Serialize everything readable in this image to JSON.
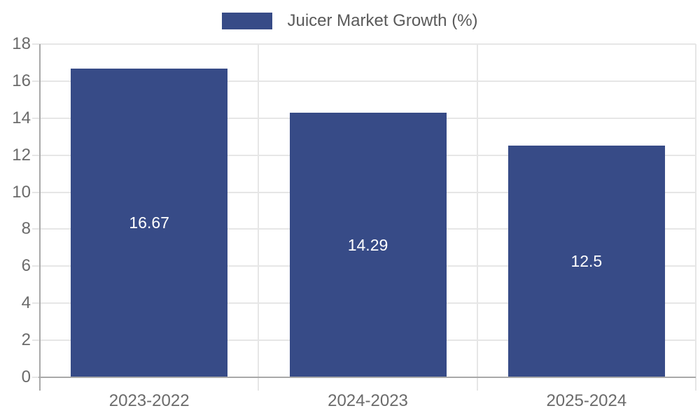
{
  "chart_data": {
    "type": "bar",
    "title": "Juicer Market Growth (%)",
    "legend": {
      "label": "Juicer Market Growth (%)",
      "position": "top-center"
    },
    "categories": [
      "2023-2022",
      "2024-2023",
      "2025-2024"
    ],
    "values": [
      16.67,
      14.29,
      12.5
    ],
    "value_labels": [
      "16.67",
      "14.29",
      "12.5"
    ],
    "xlabel": "",
    "ylabel": "",
    "ylim": [
      0,
      18
    ],
    "ytick_step": 2,
    "ytick_labels": [
      "0",
      "2",
      "4",
      "6",
      "8",
      "10",
      "12",
      "14",
      "16",
      "18"
    ],
    "grid": true,
    "colors": {
      "bar": "#374b87",
      "grid": "#e6e6e6",
      "axis": "#a9a9a9",
      "tick_text": "#6b6b6b",
      "legend_text": "#5a5a5a",
      "value_label": "#ffffff"
    }
  }
}
